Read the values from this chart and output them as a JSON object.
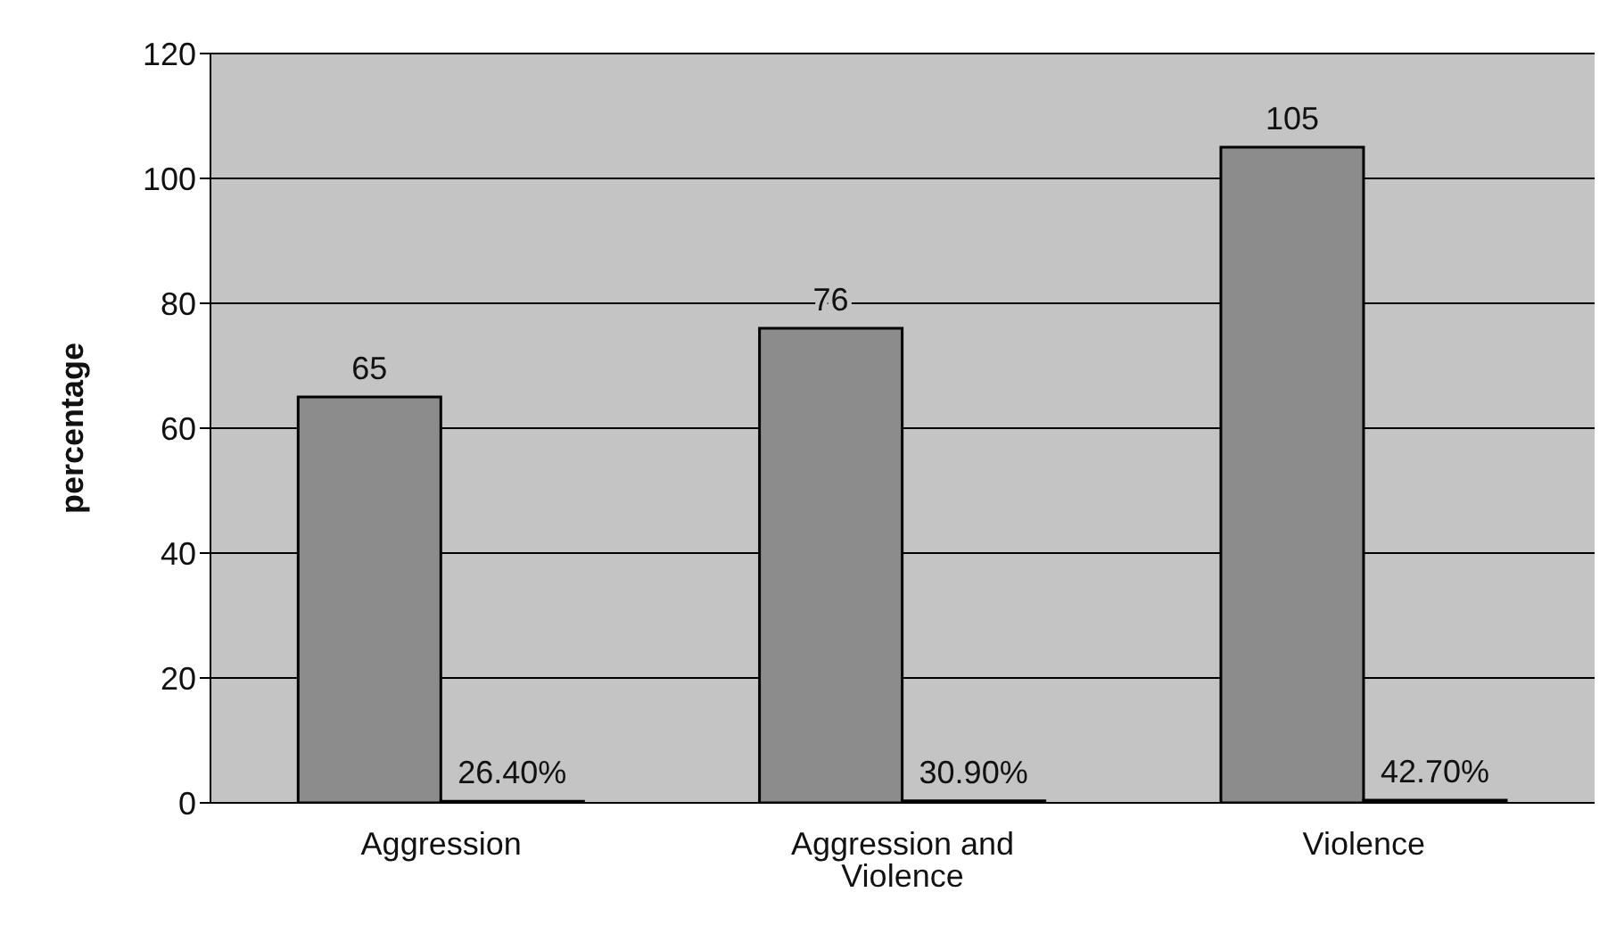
{
  "chart_data": {
    "type": "bar",
    "ylabel": "percentage",
    "categories": [
      "Aggression",
      "Aggression and Violence",
      "Violence"
    ],
    "series": [
      {
        "color": "#8c8c8c",
        "values": [
          65,
          76,
          105
        ],
        "value_labels": [
          "65",
          "76",
          "105"
        ]
      },
      {
        "color": "#3a3a3a",
        "values": [
          0.264,
          0.309,
          0.427
        ],
        "value_labels": [
          "26.40%",
          "30.90%",
          "42.70%"
        ]
      }
    ],
    "ylim": [
      0,
      120
    ],
    "yticks": [
      0,
      20,
      40,
      60,
      80,
      100,
      120
    ],
    "grid": "y",
    "legend": false
  }
}
